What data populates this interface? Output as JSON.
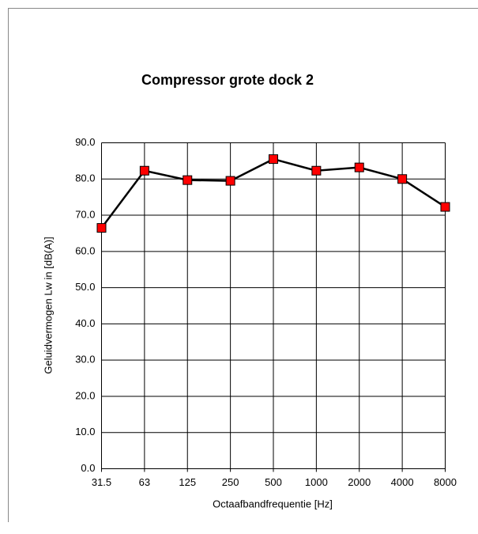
{
  "chart_data": {
    "type": "line",
    "title": "Compressor grote dock 2",
    "x_label": "Octaafbandfrequentie [Hz]",
    "y_label": "Geluidvermogen Lw in  [dB(A)]",
    "categories": [
      "31.5",
      "63",
      "125",
      "250",
      "500",
      "1000",
      "2000",
      "4000",
      "8000"
    ],
    "series": [
      {
        "name": "Compressor grote dock 2",
        "color": "#000000",
        "marker_color": "#ff0000",
        "values": [
          66.5,
          82.3,
          79.7,
          79.5,
          85.5,
          82.3,
          83.2,
          80.0,
          72.3
        ]
      }
    ],
    "ylim": [
      0,
      90
    ],
    "yticks": [
      {
        "value": 0,
        "label": "0.0"
      },
      {
        "value": 10,
        "label": "10.0"
      },
      {
        "value": 20,
        "label": "20.0"
      },
      {
        "value": 30,
        "label": "30.0"
      },
      {
        "value": 40,
        "label": "40.0"
      },
      {
        "value": 50,
        "label": "50.0"
      },
      {
        "value": 60,
        "label": "60.0"
      },
      {
        "value": 70,
        "label": "70.0"
      },
      {
        "value": 80,
        "label": "80.0"
      },
      {
        "value": 90,
        "label": "90.0"
      }
    ],
    "grid": true
  }
}
